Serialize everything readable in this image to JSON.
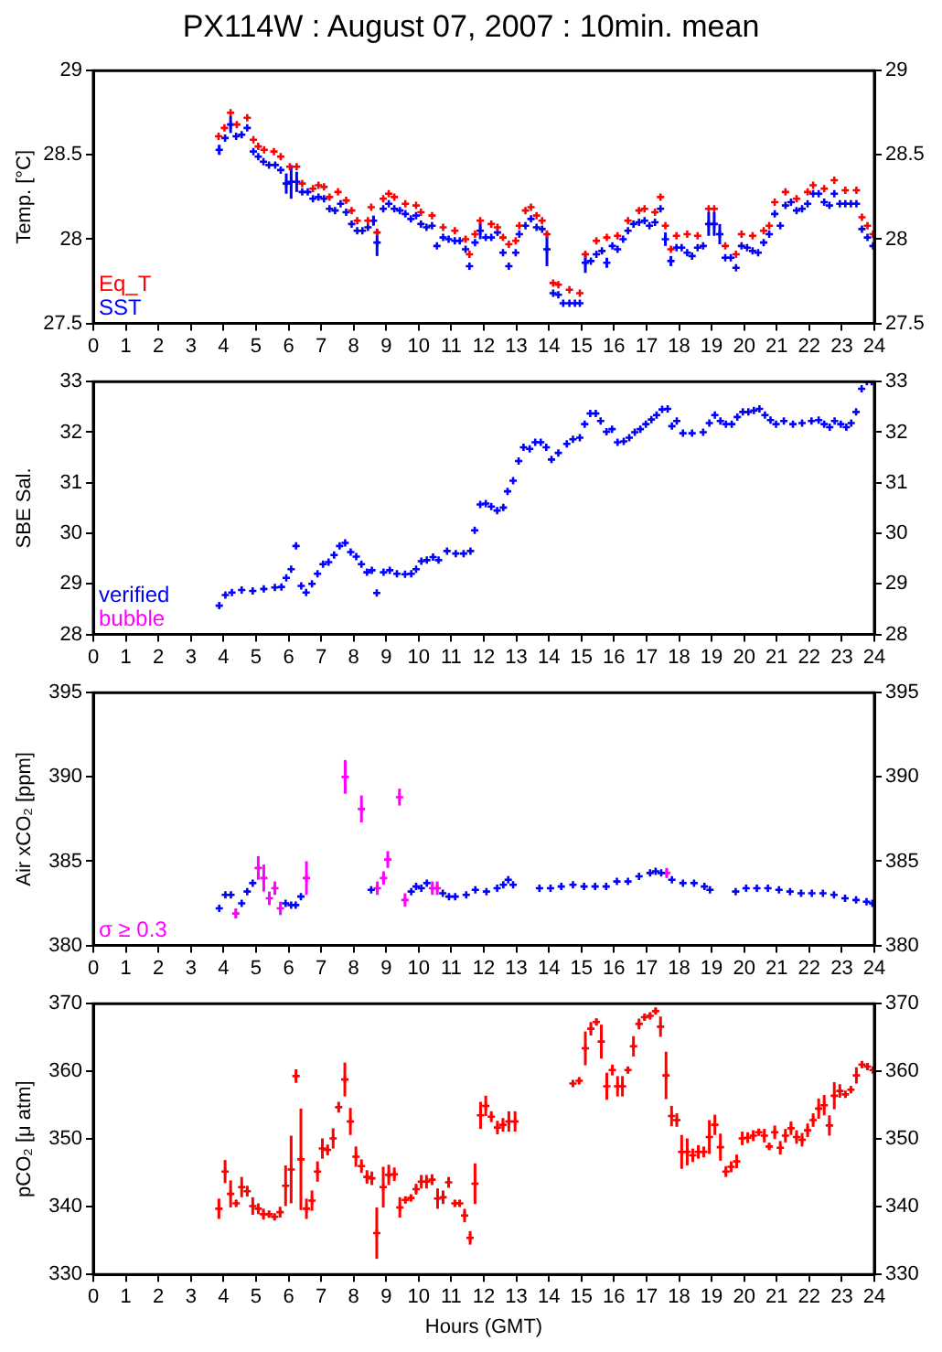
{
  "chart_data": [
    {
      "type": "scatter",
      "title": "PX114W : August 07, 2007 : 10min. mean",
      "ylabel": "Temp. [°C]",
      "xlim": [
        0,
        24
      ],
      "xticks": [
        0,
        1,
        2,
        3,
        4,
        5,
        6,
        7,
        8,
        9,
        10,
        11,
        12,
        13,
        14,
        15,
        16,
        17,
        18,
        19,
        20,
        21,
        22,
        23,
        24
      ],
      "ylim": [
        27.5,
        29
      ],
      "yticks": [
        27.5,
        28,
        28.5,
        29
      ],
      "y2lim": [
        27.5,
        29
      ],
      "y2ticks": [
        27.5,
        28,
        28.5,
        29
      ],
      "legend": "bottom left",
      "series": [
        {
          "name": "Eq_T",
          "color": "#ff0000",
          "marker": "cross",
          "x": [
            3.85,
            4.03,
            4.22,
            4.41,
            4.73,
            4.92,
            5.07,
            5.25,
            5.55,
            5.76,
            6.04,
            6.25,
            6.42,
            6.75,
            6.92,
            7.09,
            7.26,
            7.52,
            7.77,
            7.94,
            8.11,
            8.44,
            8.54,
            8.72,
            8.91,
            9.08,
            9.25,
            9.59,
            9.92,
            10.07,
            10.41,
            10.75,
            11.11,
            11.44,
            11.56,
            11.73,
            11.89,
            12.23,
            12.42,
            12.59,
            12.77,
            12.98,
            13.09,
            13.28,
            13.45,
            13.62,
            13.79,
            13.94,
            14.13,
            14.29,
            14.63,
            14.95,
            15.12,
            15.46,
            15.78,
            16.11,
            16.43,
            16.77,
            16.94,
            17.26,
            17.43,
            17.58,
            17.75,
            17.92,
            18.25,
            18.57,
            18.91,
            19.08,
            19.42,
            19.75,
            19.92,
            20.26,
            20.6,
            20.77,
            20.94,
            21.27,
            21.61,
            21.95,
            22.12,
            22.46,
            22.77,
            23.11,
            23.45,
            23.62,
            23.79,
            23.96
          ],
          "values": [
            28.61,
            28.66,
            28.75,
            28.68,
            28.72,
            28.59,
            28.55,
            28.53,
            28.52,
            28.49,
            28.43,
            28.43,
            28.33,
            28.3,
            28.32,
            28.31,
            28.25,
            28.28,
            28.23,
            28.17,
            28.11,
            28.11,
            28.19,
            28.04,
            28.24,
            28.27,
            28.25,
            28.21,
            28.2,
            28.16,
            28.14,
            28.07,
            28.05,
            28,
            27.91,
            28.03,
            28.11,
            28.09,
            28.07,
            28.01,
            27.97,
            27.99,
            28.08,
            28.17,
            28.19,
            28.14,
            28.11,
            28.03,
            27.74,
            27.73,
            27.7,
            27.68,
            27.91,
            27.99,
            28.01,
            28.02,
            28.11,
            28.17,
            28.18,
            28.16,
            28.25,
            28.08,
            27.94,
            28.02,
            28.03,
            28.02,
            28.18,
            28.18,
            27.96,
            27.91,
            28.03,
            28.02,
            28.05,
            28.08,
            28.22,
            28.28,
            28.24,
            28.28,
            28.32,
            28.3,
            28.35,
            28.29,
            28.29,
            28.13,
            28.08,
            28.03
          ]
        },
        {
          "name": "SST",
          "color": "#0000ff",
          "marker": "cross",
          "x": [
            3.87,
            4.05,
            4.22,
            4.39,
            4.56,
            4.73,
            4.92,
            5.07,
            5.23,
            5.4,
            5.59,
            5.76,
            5.93,
            6.08,
            6.25,
            6.42,
            6.59,
            6.75,
            6.92,
            7.09,
            7.26,
            7.43,
            7.6,
            7.77,
            7.94,
            8.11,
            8.27,
            8.44,
            8.61,
            8.72,
            8.91,
            9.08,
            9.25,
            9.42,
            9.59,
            9.76,
            9.92,
            10.07,
            10.24,
            10.41,
            10.56,
            10.75,
            10.92,
            11.11,
            11.26,
            11.44,
            11.56,
            11.73,
            11.89,
            12.06,
            12.23,
            12.42,
            12.59,
            12.77,
            12.98,
            13.09,
            13.28,
            13.45,
            13.62,
            13.79,
            13.94,
            14.13,
            14.29,
            14.44,
            14.63,
            14.8,
            14.95,
            15.12,
            15.29,
            15.46,
            15.63,
            15.78,
            15.95,
            16.11,
            16.28,
            16.43,
            16.6,
            16.77,
            16.94,
            17.09,
            17.26,
            17.43,
            17.58,
            17.75,
            17.92,
            18.08,
            18.25,
            18.4,
            18.57,
            18.74,
            18.91,
            19.08,
            19.25,
            19.42,
            19.59,
            19.75,
            19.92,
            20.09,
            20.26,
            20.43,
            20.6,
            20.77,
            20.94,
            21.11,
            21.27,
            21.44,
            21.61,
            21.78,
            21.95,
            22.12,
            22.29,
            22.46,
            22.62,
            22.77,
            22.94,
            23.11,
            23.28,
            23.45,
            23.62,
            23.79,
            23.96
          ],
          "values": [
            28.53,
            28.6,
            28.68,
            28.61,
            28.62,
            28.66,
            28.52,
            28.49,
            28.46,
            28.44,
            28.44,
            28.41,
            28.33,
            28.34,
            28.34,
            28.28,
            28.28,
            28.24,
            28.25,
            28.24,
            28.18,
            28.17,
            28.21,
            28.16,
            28.09,
            28.05,
            28.05,
            28.07,
            28.11,
            27.98,
            28.18,
            28.21,
            28.18,
            28.17,
            28.15,
            28.12,
            28.14,
            28.09,
            28.07,
            28.08,
            27.96,
            28.01,
            28,
            27.99,
            27.99,
            27.94,
            27.84,
            27.98,
            28.05,
            28.01,
            28.01,
            28.04,
            27.92,
            27.84,
            27.92,
            28.03,
            28.08,
            28.12,
            28.07,
            28.06,
            27.94,
            27.68,
            27.67,
            27.62,
            27.62,
            27.62,
            27.62,
            27.86,
            27.87,
            27.91,
            27.93,
            27.86,
            27.96,
            27.94,
            28,
            28.05,
            28.09,
            28.1,
            28.11,
            28.08,
            28.1,
            28.18,
            28,
            27.87,
            27.95,
            27.95,
            27.92,
            27.9,
            27.95,
            27.96,
            28.09,
            28.09,
            28.03,
            27.89,
            27.89,
            27.83,
            27.96,
            27.95,
            27.93,
            27.92,
            27.98,
            28.03,
            28.15,
            28.08,
            28.2,
            28.22,
            28.17,
            28.18,
            28.21,
            28.27,
            28.27,
            28.22,
            28.2,
            28.27,
            28.21,
            28.21,
            28.21,
            28.21,
            28.06,
            28.01,
            27.96
          ],
          "errors": [
            0.03,
            null,
            0.05,
            null,
            null,
            null,
            null,
            null,
            null,
            null,
            null,
            null,
            0.06,
            0.1,
            0.06,
            null,
            null,
            null,
            null,
            null,
            null,
            null,
            null,
            null,
            null,
            null,
            null,
            null,
            0.03,
            0.08,
            null,
            null,
            null,
            null,
            null,
            null,
            null,
            null,
            null,
            null,
            null,
            null,
            null,
            null,
            null,
            null,
            null,
            null,
            0.05,
            null,
            null,
            null,
            null,
            null,
            null,
            null,
            null,
            null,
            null,
            null,
            0.1,
            null,
            null,
            null,
            null,
            null,
            null,
            0.06,
            null,
            null,
            null,
            0.03,
            null,
            null,
            null,
            null,
            null,
            null,
            null,
            null,
            null,
            null,
            0.04,
            0.03,
            null,
            null,
            null,
            null,
            null,
            null,
            0.07,
            0.07,
            0.06,
            null,
            null,
            null,
            null,
            null,
            null,
            null,
            null,
            null,
            null,
            null,
            null,
            null,
            null,
            null,
            null,
            null,
            null,
            null,
            null,
            null,
            null,
            null,
            null,
            null,
            null,
            null,
            null
          ]
        }
      ]
    },
    {
      "type": "scatter",
      "ylabel": "SBE Sal.",
      "xlim": [
        0,
        24
      ],
      "xticks": [
        0,
        1,
        2,
        3,
        4,
        5,
        6,
        7,
        8,
        9,
        10,
        11,
        12,
        13,
        14,
        15,
        16,
        17,
        18,
        19,
        20,
        21,
        22,
        23,
        24
      ],
      "ylim": [
        28,
        33
      ],
      "yticks": [
        28,
        29,
        30,
        31,
        32,
        33
      ],
      "y2lim": [
        28,
        33
      ],
      "y2ticks": [
        28,
        29,
        30,
        31,
        32,
        33
      ],
      "legend": "bottom left",
      "series": [
        {
          "name": "verified",
          "color": "#0000ff",
          "marker": "cross",
          "x": [
            3.87,
            4.06,
            4.26,
            4.56,
            4.9,
            5.24,
            5.58,
            5.78,
            5.93,
            6.08,
            6.23,
            6.39,
            6.54,
            6.72,
            6.89,
            7.06,
            7.23,
            7.4,
            7.57,
            7.74,
            7.91,
            8.08,
            8.24,
            8.41,
            8.56,
            8.71,
            8.92,
            9.11,
            9.33,
            9.58,
            9.77,
            9.92,
            10.08,
            10.25,
            10.44,
            10.61,
            10.87,
            11.14,
            11.38,
            11.59,
            11.72,
            11.89,
            12.06,
            12.23,
            12.41,
            12.6,
            12.73,
            12.9,
            13.07,
            13.22,
            13.41,
            13.58,
            13.75,
            13.92,
            14.08,
            14.29,
            14.55,
            14.74,
            14.95,
            15.1,
            15.27,
            15.44,
            15.59,
            15.77,
            15.94,
            16.11,
            16.3,
            16.47,
            16.64,
            16.81,
            16.98,
            17.15,
            17.31,
            17.48,
            17.65,
            17.78,
            17.93,
            18.12,
            18.4,
            18.74,
            18.93,
            19.1,
            19.27,
            19.44,
            19.62,
            19.79,
            19.96,
            20.13,
            20.3,
            20.47,
            20.64,
            20.81,
            20.98,
            21.22,
            21.5,
            21.78,
            22.07,
            22.29,
            22.46,
            22.63,
            22.78,
            22.97,
            23.14,
            23.29,
            23.44,
            23.61,
            23.77,
            23.92
          ],
          "values": [
            28.57,
            28.78,
            28.83,
            28.88,
            28.86,
            28.9,
            28.93,
            28.94,
            29.12,
            29.29,
            29.75,
            28.96,
            28.83,
            29,
            29.2,
            29.39,
            29.43,
            29.57,
            29.75,
            29.81,
            29.63,
            29.54,
            29.39,
            29.23,
            29.27,
            28.82,
            29.23,
            29.27,
            29.2,
            29.19,
            29.2,
            29.29,
            29.45,
            29.47,
            29.53,
            29.47,
            29.65,
            29.6,
            29.6,
            29.65,
            30.06,
            30.57,
            30.59,
            30.53,
            30.45,
            30.51,
            30.83,
            31.04,
            31.43,
            31.7,
            31.67,
            31.8,
            31.8,
            31.7,
            31.46,
            31.59,
            31.77,
            31.86,
            31.89,
            32.16,
            32.37,
            32.37,
            32.22,
            32.01,
            32.06,
            31.8,
            31.82,
            31.89,
            32,
            32.06,
            32.16,
            32.25,
            32.34,
            32.45,
            32.46,
            32.12,
            32.22,
            31.98,
            31.98,
            32,
            32.18,
            32.34,
            32.22,
            32.16,
            32.16,
            32.3,
            32.4,
            32.4,
            32.43,
            32.46,
            32.34,
            32.24,
            32.16,
            32.22,
            32.16,
            32.18,
            32.22,
            32.24,
            32.16,
            32.1,
            32.22,
            32.16,
            32.1,
            32.18,
            32.4,
            32.86,
            33,
            33
          ]
        },
        {
          "name": "bubble",
          "color": "#ff00ff",
          "marker": "cross"
        }
      ]
    },
    {
      "type": "scatter",
      "ylabel": "Air xCO₂ [ppm]",
      "xlim": [
        0,
        24
      ],
      "xticks": [
        0,
        1,
        2,
        3,
        4,
        5,
        6,
        7,
        8,
        9,
        10,
        11,
        12,
        13,
        14,
        15,
        16,
        17,
        18,
        19,
        20,
        21,
        22,
        23,
        24
      ],
      "ylim": [
        380,
        395
      ],
      "yticks": [
        380,
        385,
        390,
        395
      ],
      "y2lim": [
        380,
        395
      ],
      "y2ticks": [
        380,
        385,
        390,
        395
      ],
      "legend": "bottom left",
      "series": [
        {
          "color": "#0000ff",
          "marker": "cross",
          "x": [
            3.87,
            4.06,
            4.23,
            4.56,
            4.73,
            4.9,
            5.91,
            6.08,
            6.22,
            6.38,
            8.54,
            9.77,
            9.92,
            10.08,
            10.25,
            10.74,
            10.93,
            11.12,
            11.46,
            11.74,
            12.08,
            12.41,
            12.6,
            12.75,
            12.9,
            13.71,
            14.05,
            14.38,
            14.74,
            15.08,
            15.42,
            15.76,
            16.09,
            16.43,
            16.77,
            17.11,
            17.28,
            17.45,
            17.78,
            18.12,
            18.46,
            18.78,
            18.95,
            19.74,
            20.06,
            20.39,
            20.73,
            21.07,
            21.41,
            21.75,
            22.08,
            22.42,
            22.76,
            23.1,
            23.44,
            23.76,
            23.94
          ],
          "values": [
            382.2,
            383,
            383,
            382.5,
            383.2,
            383.7,
            382.5,
            382.4,
            382.4,
            382.9,
            383.3,
            383.2,
            383.5,
            383.4,
            383.7,
            383.1,
            382.9,
            382.9,
            383,
            383.3,
            383.2,
            383.4,
            383.6,
            383.9,
            383.6,
            383.4,
            383.4,
            383.5,
            383.6,
            383.5,
            383.5,
            383.5,
            383.8,
            383.8,
            384.1,
            384.3,
            384.4,
            384.3,
            383.9,
            383.7,
            383.7,
            383.5,
            383.3,
            383.2,
            383.4,
            383.4,
            383.4,
            383.3,
            383.2,
            383.1,
            383.1,
            383.1,
            383,
            382.8,
            382.7,
            382.6,
            382.5
          ]
        },
        {
          "name": "σ ≥ 0.3",
          "color": "#ff00ff",
          "marker": "cross",
          "x": [
            4.38,
            5.07,
            5.24,
            5.41,
            5.58,
            5.75,
            6.55,
            7.74,
            8.24,
            8.73,
            8.92,
            9.05,
            9.41,
            9.58,
            10.42,
            10.57,
            17.62
          ],
          "values": [
            381.9,
            384.6,
            384,
            382.8,
            383.4,
            382.2,
            384,
            390,
            388.1,
            383.4,
            384,
            385.1,
            388.8,
            382.7,
            383.4,
            383.4,
            384.3
          ],
          "errors": [
            0.3,
            0.7,
            0.8,
            0.4,
            0.4,
            0.4,
            1,
            1,
            0.8,
            0.4,
            0.4,
            0.5,
            0.5,
            0.4,
            0.4,
            0.4,
            0.3
          ]
        }
      ]
    },
    {
      "type": "scatter",
      "ylabel": "pCO₂ [μ atm]",
      "xlabel": "Hours (GMT)",
      "xlim": [
        0,
        24
      ],
      "xticks": [
        0,
        1,
        2,
        3,
        4,
        5,
        6,
        7,
        8,
        9,
        10,
        11,
        12,
        13,
        14,
        15,
        16,
        17,
        18,
        19,
        20,
        21,
        22,
        23,
        24
      ],
      "ylim": [
        330,
        370
      ],
      "yticks": [
        330,
        340,
        350,
        360,
        370
      ],
      "y2lim": [
        330,
        370
      ],
      "y2ticks": [
        330,
        340,
        350,
        360,
        370
      ],
      "series": [
        {
          "color": "#ff0000",
          "marker": "cross",
          "x": [
            3.86,
            4.05,
            4.22,
            4.39,
            4.56,
            4.73,
            4.9,
            5.07,
            5.23,
            5.4,
            5.57,
            5.74,
            5.91,
            6.08,
            6.23,
            6.38,
            6.55,
            6.72,
            6.89,
            7.04,
            7.2,
            7.37,
            7.54,
            7.73,
            7.9,
            8.07,
            8.24,
            8.41,
            8.56,
            8.71,
            8.91,
            9.08,
            9.25,
            9.42,
            9.59,
            9.76,
            9.92,
            10.08,
            10.24,
            10.41,
            10.58,
            10.75,
            10.92,
            11.11,
            11.26,
            11.41,
            11.58,
            11.73,
            11.9,
            12.06,
            12.23,
            12.42,
            12.59,
            12.77,
            12.96,
            14.74,
            14.93,
            15.12,
            15.29,
            15.46,
            15.61,
            15.78,
            15.95,
            16.11,
            16.26,
            16.43,
            16.6,
            16.77,
            16.94,
            17.11,
            17.28,
            17.43,
            17.6,
            17.77,
            17.93,
            18.08,
            18.25,
            18.42,
            18.59,
            18.76,
            18.93,
            19.1,
            19.27,
            19.44,
            19.6,
            19.77,
            19.94,
            20.11,
            20.28,
            20.45,
            20.62,
            20.77,
            20.94,
            21.11,
            21.27,
            21.44,
            21.61,
            21.78,
            21.95,
            22.12,
            22.29,
            22.46,
            22.62,
            22.77,
            22.94,
            23.11,
            23.28,
            23.45,
            23.62,
            23.79,
            23.96
          ],
          "values": [
            339.7,
            345.2,
            341.9,
            340.5,
            342.9,
            342.3,
            340.1,
            339.7,
            338.9,
            338.9,
            338.5,
            339.2,
            343.1,
            345.5,
            359.3,
            347,
            339.7,
            340.9,
            345.2,
            348.6,
            348.4,
            350.1,
            354.7,
            358.8,
            352.6,
            347.4,
            346,
            344.4,
            344.2,
            336.1,
            342.9,
            344.7,
            344.8,
            339.9,
            341,
            341.3,
            342.6,
            343.7,
            343.7,
            344,
            341.2,
            341.4,
            343.6,
            340.5,
            340.5,
            338.7,
            335.4,
            343.4,
            353.5,
            354.9,
            353.3,
            351.7,
            352.1,
            352.6,
            352.6,
            358.2,
            358.6,
            363.4,
            366.3,
            367.3,
            364.4,
            357.8,
            360.2,
            357.8,
            357.8,
            360.2,
            363.7,
            367,
            368,
            368.2,
            368.9,
            366.6,
            359.4,
            353.4,
            352.8,
            348.1,
            348.1,
            347.6,
            348.1,
            348.1,
            350.3,
            352.1,
            348.8,
            345.2,
            345.9,
            346.7,
            350.1,
            350.2,
            350.5,
            351,
            350.5,
            348.9,
            351,
            348.7,
            350.5,
            351.6,
            350.3,
            349.9,
            351.3,
            352.8,
            354.5,
            355,
            352,
            356.4,
            357.1,
            356.6,
            357.3,
            359.4,
            361,
            360.7,
            360.2
          ],
          "errors": [
            1.5,
            1.7,
            2,
            0.5,
            1.5,
            0.8,
            1.3,
            0.8,
            0.8,
            0.5,
            0.5,
            0.8,
            3,
            5,
            1,
            7.5,
            1.5,
            1.5,
            1.5,
            1.5,
            0.8,
            1.5,
            0.8,
            2.5,
            2,
            1.5,
            1,
            1,
            1,
            3.8,
            3,
            1.5,
            1,
            1.5,
            0.5,
            0.5,
            0.8,
            1,
            1,
            0.8,
            1.5,
            1,
            0.8,
            0.5,
            0.5,
            1,
            1,
            3,
            2,
            1.5,
            0.8,
            1,
            1,
            1.5,
            1.5,
            0.5,
            0.5,
            2.5,
            1,
            0.5,
            2.5,
            2,
            0.8,
            1.5,
            1.5,
            0.5,
            1.5,
            0.8,
            0.5,
            0.5,
            0.5,
            1.5,
            3.5,
            1.5,
            1,
            2.5,
            2,
            1,
            1,
            0.8,
            2.5,
            1.5,
            2,
            0.8,
            0.8,
            1,
            1,
            0.8,
            0.8,
            0.5,
            1,
            0.5,
            1,
            1,
            1,
            1,
            1,
            1,
            1,
            1,
            1.5,
            1.5,
            1.5,
            2,
            1,
            0.5,
            0.5,
            1.2,
            0.5,
            0.5,
            0.5
          ]
        }
      ]
    }
  ]
}
